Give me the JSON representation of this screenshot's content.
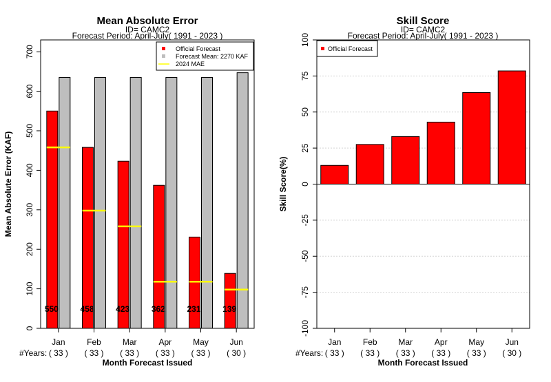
{
  "chart_data": [
    {
      "type": "bar",
      "title": "Mean Absolute Error",
      "subtitle_lines": [
        "ID= CAMC2",
        "Forecast Period: April-July( 1991 - 2023 )"
      ],
      "ylabel": "Mean Absolute Error (KAF)",
      "xlabel": "Month Forecast Issued",
      "ylim": [
        0,
        730
      ],
      "yticks": [
        0,
        100,
        200,
        300,
        400,
        500,
        600,
        700
      ],
      "categories": [
        "Jan",
        "Feb",
        "Mar",
        "Apr",
        "May",
        "Jun"
      ],
      "years_label": "#Years:",
      "years": [
        "( 33 )",
        "( 33 )",
        "( 33 )",
        "( 33 )",
        "( 33 )",
        "( 30 )"
      ],
      "series": [
        {
          "name": "Official Forecast",
          "color": "#ff0000",
          "values": [
            550,
            458,
            423,
            362,
            231,
            139
          ]
        },
        {
          "name": "Forecast Mean: 2270 KAF",
          "color": "#bebebe",
          "values": [
            635,
            635,
            635,
            635,
            635,
            647
          ]
        }
      ],
      "mae_2024": {
        "name": " 2024  MAE",
        "color": "#ffff00",
        "values": [
          458,
          298,
          258,
          118,
          118,
          98
        ]
      },
      "data_labels": [
        "550",
        "458",
        "423",
        "362",
        "231",
        "139"
      ],
      "legend_position": "top-right"
    },
    {
      "type": "bar",
      "title": "Skill Score",
      "subtitle_lines": [
        "ID= CAMC2",
        "Forecast Period: April-July( 1991 - 2023 )"
      ],
      "ylabel": "Skill Score(%)",
      "xlabel": "Month Forecast Issued",
      "ylim": [
        -100,
        100
      ],
      "yticks": [
        -100,
        -75,
        -50,
        -25,
        0,
        25,
        50,
        75,
        100
      ],
      "grid": true,
      "categories": [
        "Jan",
        "Feb",
        "Mar",
        "Apr",
        "May",
        "Jun"
      ],
      "years_label": "#Years:",
      "years": [
        "( 33 )",
        "( 33 )",
        "( 33 )",
        "( 33 )",
        "( 33 )",
        "( 30 )"
      ],
      "series": [
        {
          "name": "Official Forecast",
          "color": "#ff0000",
          "values": [
            13,
            27.5,
            33,
            43,
            63.5,
            78.5
          ]
        }
      ],
      "legend_position": "top-left"
    }
  ]
}
